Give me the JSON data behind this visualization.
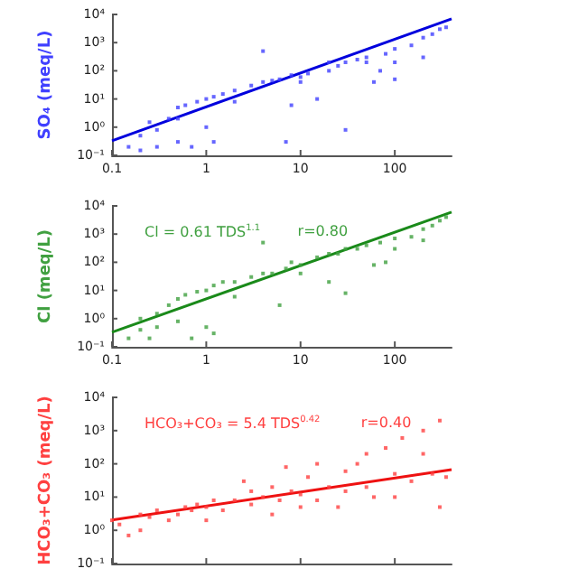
{
  "chart_data": [
    {
      "type": "scatter",
      "ylabel": "SO₄ (meq/L)",
      "log": "xy",
      "grid": false,
      "xlim": [
        0.1,
        400
      ],
      "xticks": [
        0.1,
        1,
        10,
        100
      ],
      "ylim": [
        0.1,
        10000
      ],
      "yticks": [
        {
          "value": 0.1,
          "label": "10⁻¹"
        },
        {
          "value": 1,
          "label": "10⁰"
        },
        {
          "value": 10,
          "label": "10¹"
        },
        {
          "value": 100,
          "label": "10²"
        },
        {
          "value": 1000,
          "label": "10³"
        },
        {
          "value": 10000,
          "label": "10⁴"
        }
      ],
      "series": [
        {
          "color": "#4040ff",
          "x": [
            0.15,
            0.2,
            0.2,
            0.25,
            0.3,
            0.3,
            0.4,
            0.5,
            0.5,
            0.5,
            0.6,
            0.7,
            0.8,
            1,
            1,
            1.2,
            1.2,
            1.5,
            2,
            2,
            3,
            4,
            4,
            5,
            6,
            7,
            8,
            8,
            10,
            10,
            12,
            15,
            20,
            20,
            25,
            30,
            30,
            40,
            50,
            50,
            60,
            70,
            80,
            100,
            100,
            100,
            150,
            200,
            200,
            250,
            300,
            350
          ],
          "values": [
            0.2,
            0.5,
            0.15,
            1.5,
            0.8,
            0.2,
            2,
            5,
            0.3,
            2,
            6,
            0.2,
            8,
            10,
            1,
            12,
            0.3,
            15,
            20,
            8,
            30,
            500,
            40,
            45,
            50,
            0.3,
            6,
            70,
            60,
            40,
            80,
            10,
            100,
            200,
            150,
            200,
            0.8,
            250,
            300,
            200,
            40,
            100,
            400,
            600,
            200,
            50,
            800,
            1500,
            300,
            2000,
            3000,
            3500
          ]
        },
        {
          "type": "line",
          "color": "#0000dd",
          "x": [
            0.1,
            400
          ],
          "values": [
            0.33,
            7000
          ]
        }
      ]
    },
    {
      "type": "scatter",
      "ylabel": "Cl (meq/L)",
      "log": "xy",
      "grid": false,
      "annotations": [
        "Cl = 0.61 TDS$^{1.1}$",
        "r=0.80"
      ],
      "xlim": [
        0.1,
        400
      ],
      "xticks": [
        0.1,
        1,
        10,
        100
      ],
      "ylim": [
        0.1,
        10000
      ],
      "yticks": [
        {
          "value": 0.1,
          "label": "10⁻¹"
        },
        {
          "value": 1,
          "label": "10⁰"
        },
        {
          "value": 10,
          "label": "10¹"
        },
        {
          "value": 100,
          "label": "10²"
        },
        {
          "value": 1000,
          "label": "10³"
        },
        {
          "value": 10000,
          "label": "10⁴"
        }
      ],
      "series": [
        {
          "color": "#40a040",
          "x": [
            0.15,
            0.2,
            0.2,
            0.25,
            0.3,
            0.3,
            0.4,
            0.5,
            0.5,
            0.6,
            0.7,
            0.8,
            1,
            1,
            1.2,
            1.2,
            1.5,
            2,
            2,
            3,
            4,
            4,
            5,
            6,
            7,
            8,
            10,
            10,
            15,
            20,
            20,
            25,
            30,
            30,
            40,
            50,
            60,
            70,
            80,
            100,
            100,
            150,
            200,
            200,
            250,
            300,
            350
          ],
          "values": [
            0.2,
            0.4,
            1,
            0.2,
            1.5,
            0.5,
            3,
            5,
            0.8,
            7,
            0.2,
            9,
            10,
            0.5,
            15,
            0.3,
            20,
            20,
            6,
            30,
            500,
            40,
            40,
            3,
            60,
            100,
            80,
            40,
            150,
            200,
            20,
            200,
            8,
            300,
            300,
            400,
            80,
            500,
            100,
            700,
            300,
            800,
            1500,
            600,
            2000,
            3000,
            4000
          ]
        },
        {
          "type": "line",
          "color": "#1a8a1a",
          "x": [
            0.1,
            400
          ],
          "values": [
            0.33,
            6000
          ]
        }
      ]
    },
    {
      "type": "scatter",
      "ylabel": "HCO₃+CO₃ (meq/L)",
      "log": "xy",
      "grid": false,
      "tick_labels": "y",
      "annotations": [
        "HCO₃+CO₃ = 5.4 TDS$^{0.42}$",
        "r=0.40"
      ],
      "xlim": [
        0.1,
        400
      ],
      "xticks": [
        0.1,
        1,
        10,
        100
      ],
      "ylim": [
        0.1,
        10000
      ],
      "yticks": [
        {
          "value": 0.1,
          "label": "10⁻¹"
        },
        {
          "value": 1,
          "label": "10⁰"
        },
        {
          "value": 10,
          "label": "10¹"
        },
        {
          "value": 100,
          "label": "10²"
        },
        {
          "value": 1000,
          "label": "10³"
        },
        {
          "value": 10000,
          "label": "10⁴"
        }
      ],
      "series": [
        {
          "color": "#ff4040",
          "x": [
            0.1,
            0.12,
            0.15,
            0.2,
            0.2,
            0.25,
            0.3,
            0.4,
            0.5,
            0.6,
            0.7,
            0.8,
            1,
            1,
            1.2,
            1.5,
            2,
            2.5,
            3,
            3,
            4,
            5,
            5,
            6,
            7,
            8,
            10,
            10,
            12,
            15,
            15,
            20,
            25,
            30,
            30,
            40,
            50,
            50,
            60,
            80,
            100,
            100,
            120,
            150,
            200,
            200,
            250,
            300,
            300,
            350
          ],
          "values": [
            2,
            1.5,
            0.7,
            3,
            1,
            2.5,
            4,
            2,
            3,
            5,
            4,
            6,
            5,
            2,
            8,
            4,
            8,
            30,
            6,
            15,
            10,
            3,
            20,
            8,
            80,
            15,
            12,
            5,
            40,
            100,
            8,
            20,
            5,
            15,
            60,
            100,
            20,
            200,
            10,
            300,
            50,
            10,
            600,
            30,
            200,
            1000,
            50,
            2000,
            5,
            40
          ]
        },
        {
          "type": "line",
          "color": "#ee1111",
          "x": [
            0.1,
            400
          ],
          "values": [
            2.05,
            67
          ]
        }
      ]
    }
  ]
}
